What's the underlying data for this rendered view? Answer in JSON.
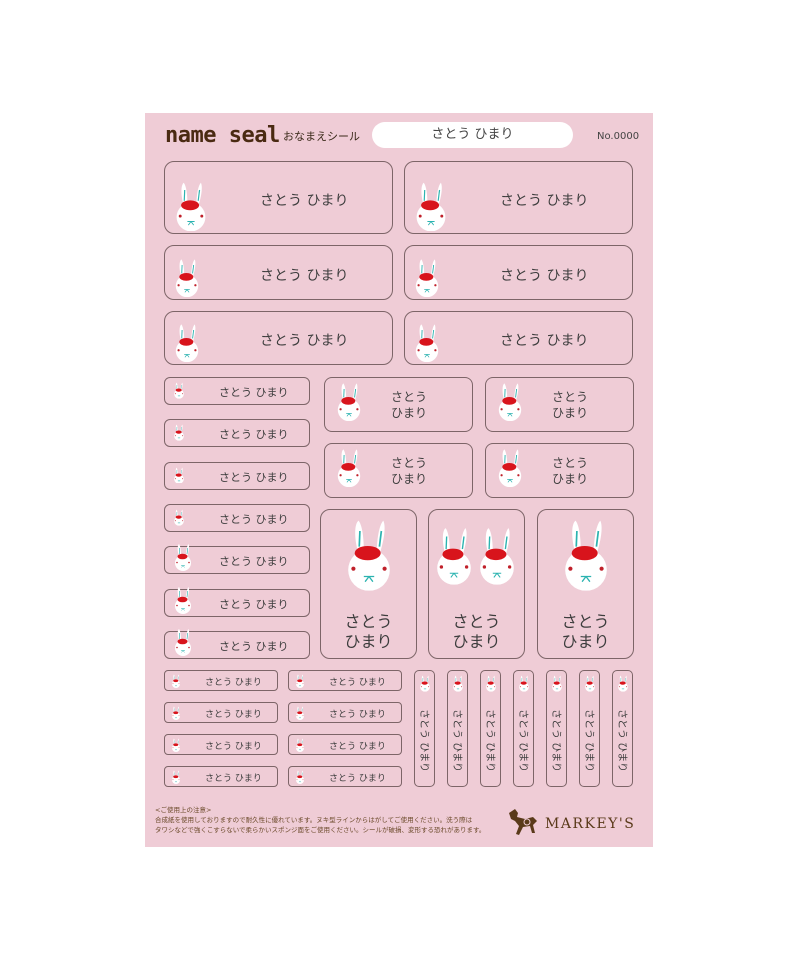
{
  "header": {
    "logo": "name seal",
    "subtitle": "おなまえシール",
    "name": "さとう ひまり",
    "number": "No.0000"
  },
  "label": {
    "full": "さとう ひまり",
    "family": "さとう",
    "given": "ひまり",
    "icon": "rabbit-with-red-beret-icon"
  },
  "footer": {
    "note_title": "<ご使用上の注意>",
    "note_line1": "合成紙を使用しておりますので耐久性に優れています。ヌキ型ラインからはがしてご使用ください。洗う際は",
    "note_line2": "タワシなどで強くこすらないで柔らかいスポンジ面をご使用ください。シールが破損、変形する恐れがあります。",
    "brand": "MARKEY'S"
  },
  "colors": {
    "sheet": "#efccd6",
    "border": "#7d6568",
    "beret": "#d8141c",
    "brand": "#5a3a1a"
  }
}
